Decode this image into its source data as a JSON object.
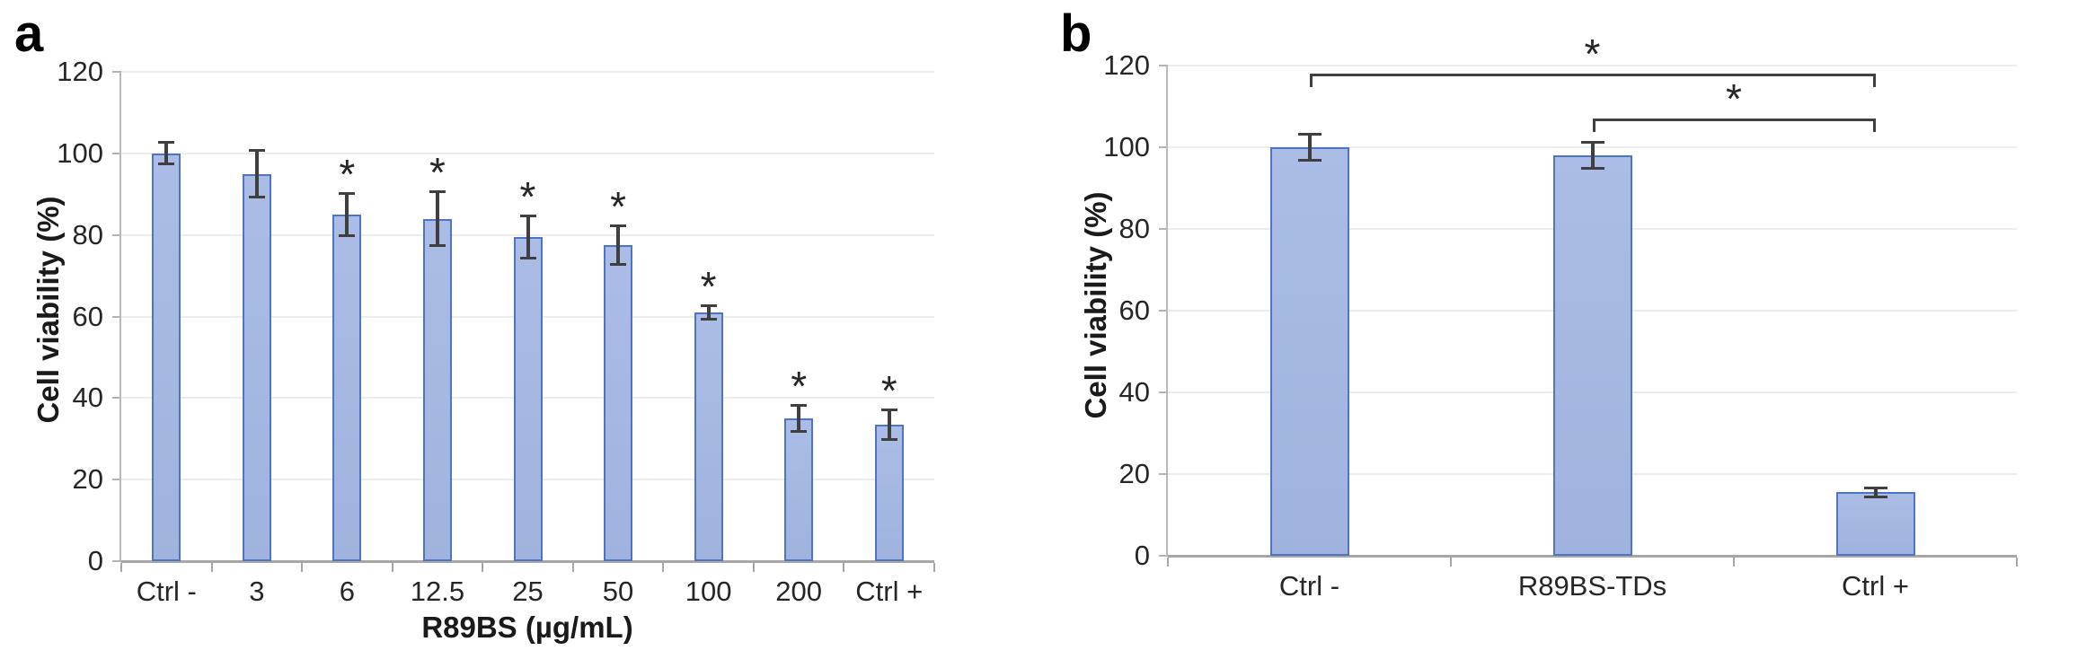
{
  "figure": {
    "background": "#ffffff",
    "description_panels": [
      "a",
      "b"
    ]
  },
  "chart_data": [
    {
      "type": "bar",
      "panel_label": "a",
      "title": "",
      "xlabel": "R89BS (µg/mL)",
      "ylabel": "Cell viability (%)",
      "ylim": [
        0,
        120
      ],
      "yticks": [
        0,
        20,
        40,
        60,
        80,
        100,
        120
      ],
      "grid": true,
      "legend": "none",
      "categories": [
        "Ctrl -",
        "3",
        "6",
        "12.5",
        "25",
        "50",
        "100",
        "200",
        "Ctrl +"
      ],
      "values": [
        100,
        95,
        85,
        84,
        79.5,
        77.5,
        61,
        35,
        33.5
      ],
      "errors": [
        3,
        6,
        5.5,
        7,
        5.5,
        5,
        2,
        3.5,
        4
      ],
      "sig_markers": [
        "",
        "",
        "*",
        "*",
        "*",
        "*",
        "*",
        "*",
        "*"
      ],
      "sig_brackets": []
    },
    {
      "type": "bar",
      "panel_label": "b",
      "title": "",
      "xlabel": "",
      "ylabel": "Cell viability (%)",
      "ylim": [
        0,
        120
      ],
      "yticks": [
        0,
        20,
        40,
        60,
        80,
        100,
        120
      ],
      "grid": true,
      "legend": "none",
      "categories": [
        "Ctrl -",
        "R89BS-TDs",
        "Ctrl +"
      ],
      "values": [
        100,
        98,
        15.5
      ],
      "errors": [
        3.5,
        3.5,
        1.5
      ],
      "sig_markers": [
        "",
        "",
        ""
      ],
      "sig_brackets": [
        {
          "from": 0,
          "to": 2,
          "level": 118,
          "marker": "*"
        },
        {
          "from": 1,
          "to": 2,
          "level": 107,
          "marker": "*"
        }
      ]
    }
  ],
  "colors": {
    "bar_fill": "#a3b6e0",
    "bar_border": "#4e74c4",
    "error_bar": "#3f3f3f",
    "gridline": "#ececec",
    "axis_line": "#a6a6a6",
    "text": "#262626",
    "background": "#ffffff"
  }
}
